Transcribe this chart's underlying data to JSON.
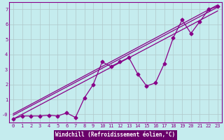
{
  "background_color": "#c5ecee",
  "grid_color": "#b0c8ca",
  "line_color": "#880088",
  "xlabel": "Windchill (Refroidissement éolien,°C)",
  "xlim": [
    -0.5,
    23.5
  ],
  "ylim": [
    -0.55,
    7.5
  ],
  "xticks": [
    0,
    1,
    2,
    3,
    4,
    5,
    6,
    7,
    8,
    9,
    10,
    11,
    12,
    13,
    14,
    15,
    16,
    17,
    18,
    19,
    20,
    21,
    22,
    23
  ],
  "yticks": [
    0,
    1,
    2,
    3,
    4,
    5,
    6,
    7
  ],
  "ytick_labels": [
    "-0",
    "1",
    "2",
    "3",
    "4",
    "5",
    "6",
    "7"
  ],
  "data_x": [
    0,
    1,
    2,
    3,
    4,
    5,
    6,
    7,
    8,
    9,
    10,
    11,
    12,
    13,
    14,
    15,
    16,
    17,
    18,
    19,
    20,
    21,
    22,
    23
  ],
  "data_y": [
    -0.3,
    -0.1,
    -0.1,
    -0.1,
    -0.05,
    -0.1,
    0.1,
    -0.2,
    1.1,
    2.0,
    3.5,
    3.2,
    3.5,
    3.8,
    2.7,
    1.9,
    2.1,
    3.4,
    5.1,
    6.3,
    5.4,
    6.2,
    7.0,
    7.2
  ],
  "line1_x": [
    0,
    23
  ],
  "line1_y": [
    -0.3,
    6.9
  ],
  "line2_x": [
    0,
    23
  ],
  "line2_y": [
    -0.05,
    7.15
  ],
  "line3_x": [
    0,
    23
  ],
  "line3_y": [
    0.05,
    7.3
  ],
  "xlabel_bg": "#6a006a",
  "xlabel_fg": "#ffffff",
  "xlabel_fontsize": 5.5,
  "tick_fontsize": 5.0,
  "marker_size": 2.5
}
